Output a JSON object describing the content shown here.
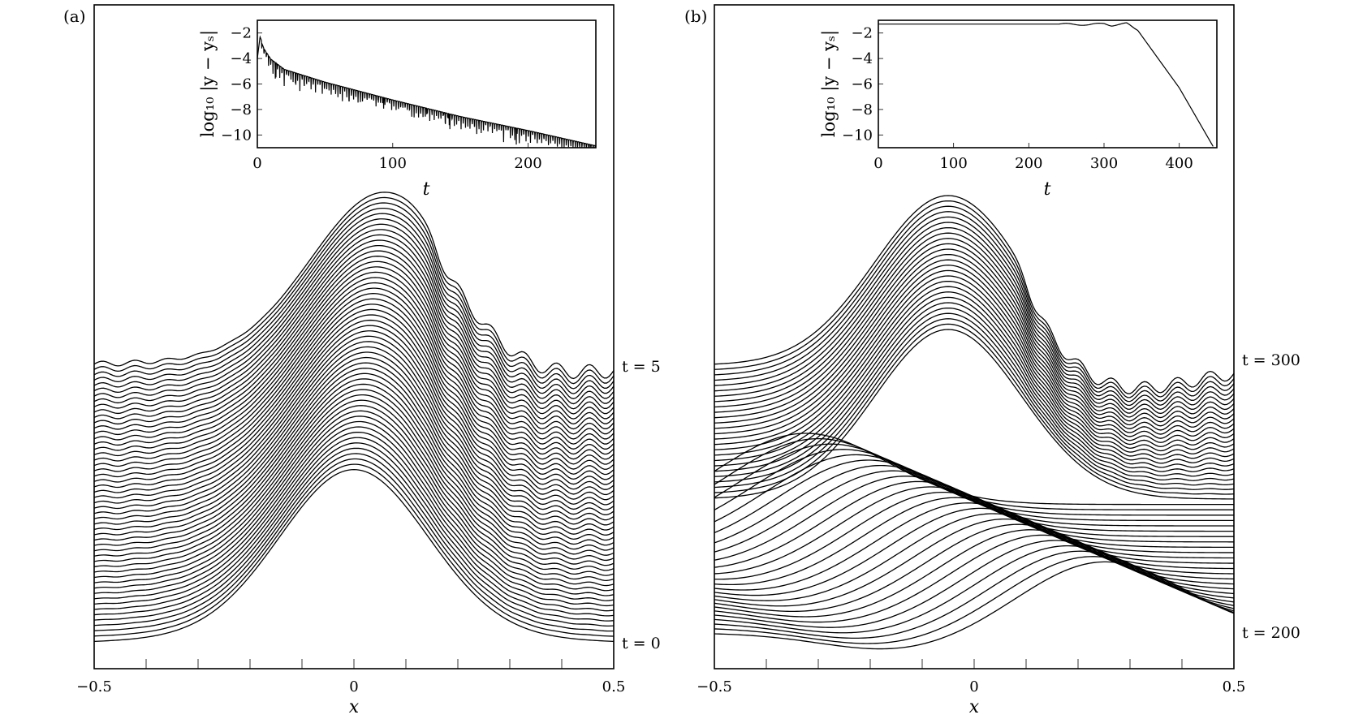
{
  "chart_data": [
    {
      "type": "line",
      "panel_label": "(a)",
      "xlabel": "x",
      "xlim": [
        -0.5,
        0.5
      ],
      "x_ticks": [
        -0.5,
        0,
        0.5
      ],
      "x_tick_labels": [
        "−0.5",
        "0",
        "0.5"
      ],
      "curve_count": 53,
      "curve_labels": [
        {
          "text": "t = 5",
          "t": 5
        },
        {
          "text": "t = 0",
          "t": 0
        }
      ],
      "inset": {
        "type": "line",
        "xlabel": "t",
        "ylabel": "log₁₀ |y − yₛ|",
        "xlim": [
          0,
          250
        ],
        "ylim": [
          -11,
          -1
        ],
        "x_ticks": [
          0,
          100,
          200
        ],
        "x_tick_labels": [
          "0",
          "100",
          "200"
        ],
        "y_ticks": [
          -2,
          -4,
          -6,
          -8,
          -10
        ],
        "y_tick_labels": [
          "−2",
          "−4",
          "−6",
          "−8",
          "−10"
        ],
        "series": [
          {
            "t": [
              0,
              2,
              5,
              10,
              20,
              50,
              100,
              150,
              200,
              250
            ],
            "values": [
              -4.0,
              -2.3,
              -3.1,
              -3.9,
              -4.7,
              -5.7,
              -7.1,
              -8.4,
              -9.5,
              -10.7
            ]
          }
        ]
      }
    },
    {
      "type": "line",
      "panel_label": "(b)",
      "xlabel": "x",
      "xlim": [
        -0.5,
        0.5
      ],
      "x_ticks": [
        -0.5,
        0,
        0.5
      ],
      "x_tick_labels": [
        "−0.5",
        "0",
        "0.5"
      ],
      "curve_count": 51,
      "curve_labels": [
        {
          "text": "t = 300",
          "t": 300
        },
        {
          "text": "t = 200",
          "t": 200
        }
      ],
      "inset": {
        "type": "line",
        "xlabel": "t",
        "ylabel": "log₁₀ |y − yₛ|",
        "xlim": [
          0,
          450
        ],
        "ylim": [
          -11,
          -1
        ],
        "x_ticks": [
          0,
          100,
          200,
          300,
          400
        ],
        "x_tick_labels": [
          "0",
          "100",
          "200",
          "300",
          "400"
        ],
        "y_ticks": [
          -2,
          -4,
          -6,
          -8,
          -10
        ],
        "y_tick_labels": [
          "−2",
          "−4",
          "−6",
          "−8",
          "−10"
        ],
        "series": [
          {
            "t": [
              0,
              100,
              200,
              250,
              280,
              300,
              310,
              330,
              345,
              400,
              445
            ],
            "values": [
              -1.3,
              -1.3,
              -1.3,
              -1.3,
              -1.35,
              -1.25,
              -1.4,
              -1.25,
              -1.8,
              -6.3,
              -10.9
            ]
          }
        ]
      }
    }
  ]
}
